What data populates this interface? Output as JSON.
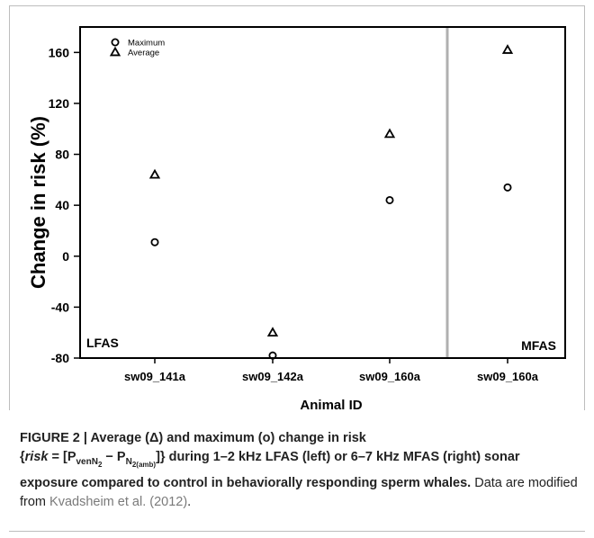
{
  "chart_data": {
    "type": "scatter",
    "ylabel": "Change in risk (%)",
    "xlabel": "Animal ID",
    "ylim": [
      -80,
      180
    ],
    "yticks": [
      -80,
      -40,
      0,
      40,
      80,
      120,
      160
    ],
    "categories": [
      "sw09_141a",
      "sw09_142a",
      "sw09_160a",
      "sw09_160a"
    ],
    "series": [
      {
        "name": "Maximum",
        "marker": "circle",
        "values": [
          11,
          -78,
          44,
          54
        ]
      },
      {
        "name": "Average",
        "marker": "triangle",
        "values": [
          64,
          -60,
          96,
          162
        ]
      }
    ],
    "panels": [
      {
        "label": "LFAS",
        "categories": [
          0,
          1,
          2
        ]
      },
      {
        "label": "MFAS",
        "categories": [
          3
        ]
      }
    ],
    "legend_position": "top-left",
    "grid": false,
    "divider_color": "#b0b0b0"
  },
  "caption": {
    "figure_label": "FIGURE 2 | Average (Δ) and maximum (o) change in risk",
    "formula_lead": "{",
    "formula_var": "risk",
    "formula_eq": " = [P",
    "formula_sub1": "venN",
    "formula_sub1b": "2",
    "formula_minus": " − P",
    "formula_sub2": "N",
    "formula_sub2b": "2(amb)",
    "formula_close": "]}",
    "formula_rest": " during 1–2 kHz LFAS (left) or 6–7 kHz MFAS (right) sonar exposure compared to control in behaviorally responding sperm whales.",
    "note_text": " Data are modified from ",
    "note_link": "Kvadsheim et al. (2012)",
    "note_end": "."
  }
}
